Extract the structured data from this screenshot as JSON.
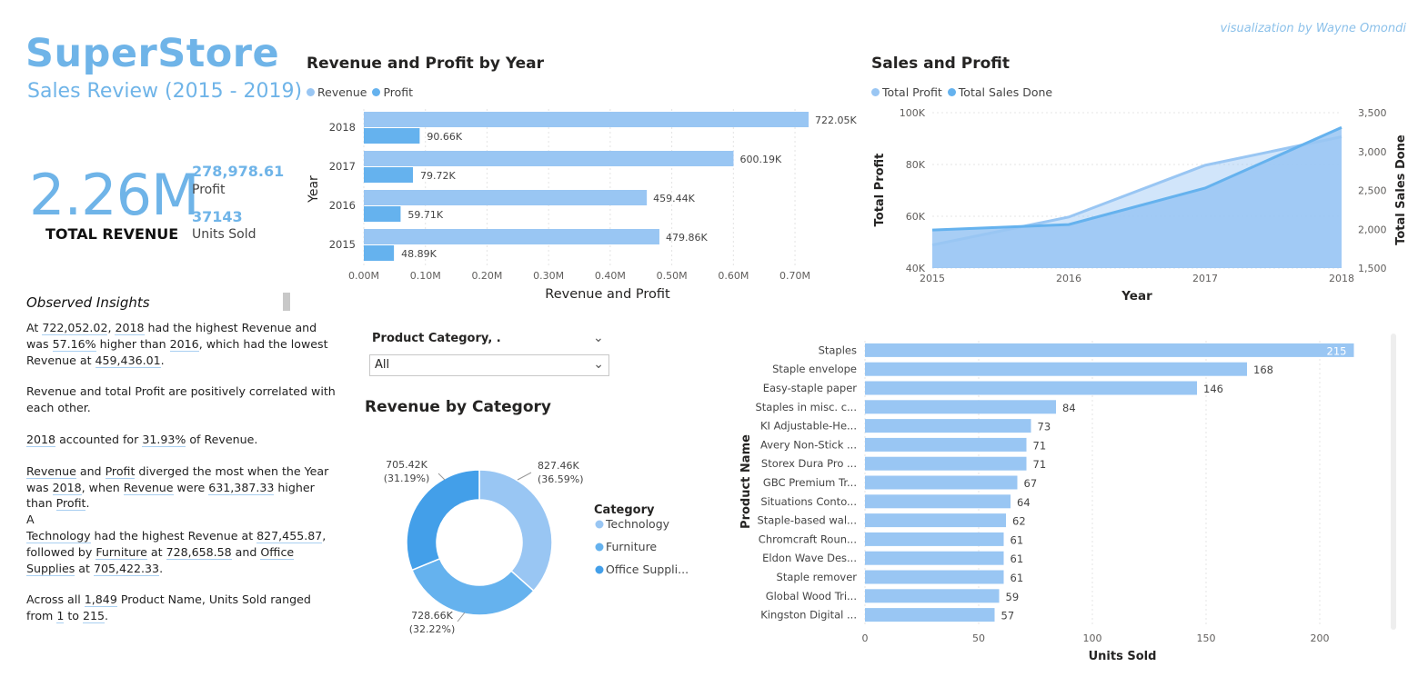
{
  "credit": "visualization by Wayne Omondi",
  "brand": {
    "title": "SuperStore",
    "subtitle": "Sales Review (2015 - 2019)"
  },
  "kpis": {
    "total_revenue_value": "2.26M",
    "total_revenue_label": "TOTAL REVENUE",
    "profit_value": "278,978.61",
    "profit_label": "Profit",
    "units_value": "37143",
    "units_label": "Units Sold"
  },
  "insights": {
    "title": "Observed Insights",
    "p1": {
      "a": "At ",
      "v1": "722,052.02",
      "b": ", ",
      "v2": "2018",
      "c": " had the highest Revenue and was ",
      "v3": "57.16%",
      "d": " higher than ",
      "v4": "2016",
      "e": ", which had the lowest Revenue at ",
      "v5": "459,436.01",
      "f": "."
    },
    "p2": "Revenue and total Profit are positively correlated with each other.",
    "p3": {
      "v1": "2018",
      "a": " accounted for ",
      "v2": "31.93%",
      "b": " of Revenue."
    },
    "p4": {
      "v1": "Revenue",
      "a": " and ",
      "v2": "Profit",
      "b": " diverged the most when the Year was ",
      "v3": "2018",
      "c": ", when ",
      "v4": "Revenue",
      "d": " were ",
      "v5": "631,387.33",
      "e": " higher than ",
      "v6": "Profit",
      "f": ".",
      "g": "A"
    },
    "p5": {
      "v1": "Technology",
      "a": " had the highest Revenue at ",
      "v2": "827,455.87",
      "b": ", followed by ",
      "v3": "Furniture",
      "c": " at ",
      "v4": "728,658.58",
      "d": " and ",
      "v5": "Office Supplies",
      "e": " at ",
      "v6": "705,422.33",
      "f": "."
    },
    "p6": {
      "a": "Across all ",
      "v1": "1,849",
      "b": " Product Name, Units Sold ranged from ",
      "v2": "1",
      "c": " to ",
      "v3": "215",
      "d": "."
    }
  },
  "slicer": {
    "label": "Product Category, .",
    "value": "All"
  },
  "colors": {
    "light": "#99c6f3",
    "mid": "#65b2ee",
    "dark": "#439fe9",
    "grid": "#e4e4e4"
  },
  "chart_data": [
    {
      "type": "bar",
      "title": "Revenue and Profit by Year",
      "xlabel": "Revenue and Profit",
      "ylabel": "Year",
      "categories": [
        "2018",
        "2017",
        "2016",
        "2015"
      ],
      "series": [
        {
          "name": "Revenue",
          "values": [
            722050,
            600190,
            459440,
            479860
          ],
          "labels": [
            "722.05K",
            "600.19K",
            "459.44K",
            "479.86K"
          ]
        },
        {
          "name": "Profit",
          "values": [
            90660,
            79720,
            59710,
            48890
          ],
          "labels": [
            "90.66K",
            "79.72K",
            "59.71K",
            "48.89K"
          ]
        }
      ],
      "xticks": [
        "0.00M",
        "0.10M",
        "0.20M",
        "0.30M",
        "0.40M",
        "0.50M",
        "0.60M",
        "0.70M"
      ],
      "xlim": [
        0,
        790000
      ],
      "legend": "top-left"
    },
    {
      "type": "area",
      "title": "Sales and Profit",
      "xlabel": "Year",
      "ylabel": "Total Profit",
      "y2label": "Total Sales Done",
      "x": [
        "2015",
        "2016",
        "2017",
        "2018"
      ],
      "series": [
        {
          "name": "Total Profit",
          "axis": "left",
          "values": [
            48900,
            59700,
            79700,
            90700
          ]
        },
        {
          "name": "Total Sales Done",
          "axis": "right",
          "values": [
            1990,
            2060,
            2530,
            3310
          ]
        }
      ],
      "ylim": [
        40000,
        100000
      ],
      "y2lim": [
        1500,
        3500
      ],
      "yticks": [
        "40K",
        "60K",
        "80K",
        "100K"
      ],
      "y2ticks": [
        "1,500",
        "2,000",
        "2,500",
        "3,000",
        "3,500"
      ],
      "legend": "top-left"
    },
    {
      "type": "pie",
      "title": "Revenue by Category",
      "legend_title": "Category",
      "categories": [
        "Technology",
        "Furniture",
        "Office Suppli..."
      ],
      "values": [
        827460,
        728660,
        705420
      ],
      "value_labels": [
        "827.46K",
        "728.66K",
        "705.42K"
      ],
      "percent_labels": [
        "(36.59%)",
        "(32.22%)",
        "(31.19%)"
      ],
      "legend": "right"
    },
    {
      "type": "bar",
      "title": "",
      "xlabel": "Units Sold",
      "ylabel": "Product Name",
      "categories": [
        "Staples",
        "Staple envelope",
        "Easy-staple paper",
        "Staples in misc. c...",
        "KI Adjustable-He...",
        "Avery Non-Stick ...",
        "Storex Dura Pro ...",
        "GBC Premium Tr...",
        "Situations Conto...",
        "Staple-based wal...",
        "Chromcraft Roun...",
        "Eldon Wave Des...",
        "Staple remover",
        "Global Wood Tri...",
        "Kingston Digital ..."
      ],
      "values": [
        215,
        168,
        146,
        84,
        73,
        71,
        71,
        67,
        64,
        62,
        61,
        61,
        61,
        59,
        57
      ],
      "xticks": [
        "0",
        "50",
        "100",
        "150",
        "200"
      ],
      "xlim": [
        0,
        220
      ]
    }
  ]
}
